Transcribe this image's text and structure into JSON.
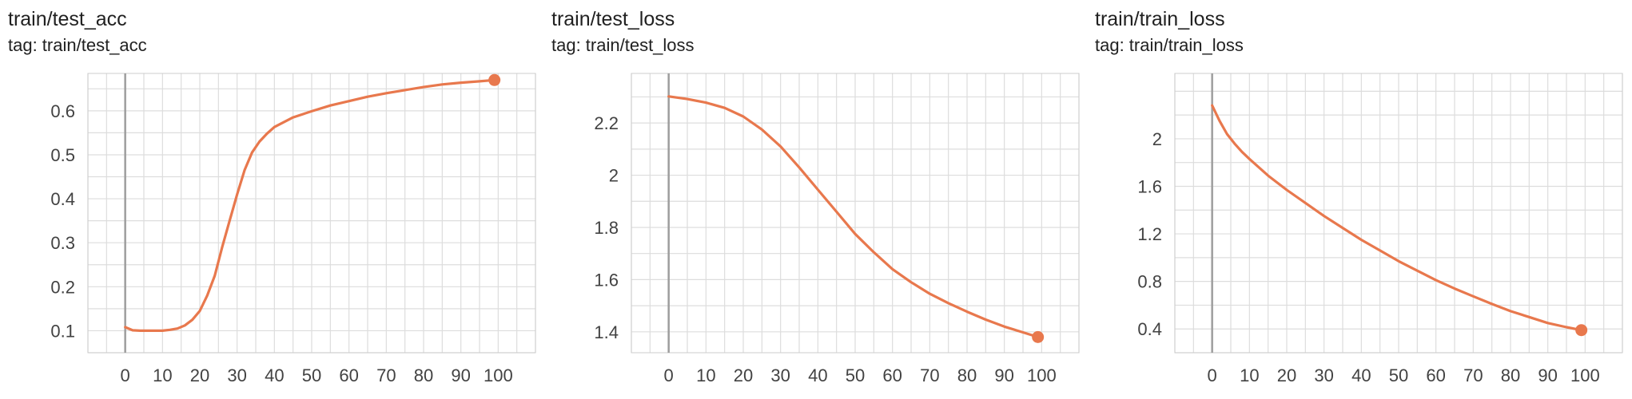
{
  "colors": {
    "series": "#E8784D",
    "grid": "#dddddd",
    "zero_axis": "#9e9e9e",
    "frame": "#cccccc",
    "text": "#212121"
  },
  "panels": [
    {
      "title": "train/test_acc",
      "tag": "tag: train/test_acc"
    },
    {
      "title": "train/test_loss",
      "tag": "tag: train/test_loss"
    },
    {
      "title": "train/train_loss",
      "tag": "tag: train/train_loss"
    }
  ],
  "chart_data": [
    {
      "type": "line",
      "title": "train/test_acc",
      "subtitle": "tag: train/test_acc",
      "xlim": [
        -10,
        110
      ],
      "ylim": [
        0.05,
        0.685
      ],
      "xticks": [
        0,
        10,
        20,
        30,
        40,
        50,
        60,
        70,
        80,
        90,
        100
      ],
      "yticks": [
        0.1,
        0.2,
        0.3,
        0.4,
        0.5,
        0.6
      ],
      "ytick_labels": [
        "0.1",
        "0.2",
        "0.3",
        "0.4",
        "0.5",
        "0.6"
      ],
      "grid": true,
      "series": [
        {
          "x": [
            0,
            2,
            4,
            6,
            8,
            10,
            12,
            14,
            16,
            18,
            20,
            22,
            24,
            26,
            28,
            30,
            32,
            34,
            36,
            38,
            40,
            45,
            50,
            55,
            60,
            65,
            70,
            75,
            80,
            85,
            90,
            95,
            99
          ],
          "y": [
            0.108,
            0.101,
            0.1,
            0.1,
            0.1,
            0.1,
            0.102,
            0.105,
            0.112,
            0.125,
            0.145,
            0.18,
            0.225,
            0.29,
            0.35,
            0.41,
            0.465,
            0.505,
            0.53,
            0.548,
            0.563,
            0.585,
            0.599,
            0.612,
            0.622,
            0.632,
            0.64,
            0.647,
            0.654,
            0.66,
            0.664,
            0.667,
            0.67
          ]
        }
      ]
    },
    {
      "type": "line",
      "title": "train/test_loss",
      "subtitle": "tag: train/test_loss",
      "xlim": [
        -10,
        110
      ],
      "ylim": [
        1.32,
        2.39
      ],
      "xticks": [
        0,
        10,
        20,
        30,
        40,
        50,
        60,
        70,
        80,
        90,
        100
      ],
      "yticks": [
        1.4,
        1.6,
        1.8,
        2.0,
        2.2
      ],
      "ytick_labels": [
        "1.4",
        "1.6",
        "1.8",
        "2",
        "2.2"
      ],
      "grid": true,
      "series": [
        {
          "x": [
            0,
            5,
            10,
            15,
            20,
            25,
            30,
            35,
            40,
            45,
            50,
            55,
            60,
            65,
            70,
            75,
            80,
            85,
            90,
            95,
            99
          ],
          "y": [
            2.302,
            2.292,
            2.278,
            2.258,
            2.225,
            2.175,
            2.11,
            2.03,
            1.945,
            1.86,
            1.775,
            1.705,
            1.64,
            1.59,
            1.546,
            1.51,
            1.477,
            1.447,
            1.42,
            1.398,
            1.38
          ]
        }
      ]
    },
    {
      "type": "line",
      "title": "train/train_loss",
      "subtitle": "tag: train/train_loss",
      "xlim": [
        -10,
        110
      ],
      "ylim": [
        0.2,
        2.55
      ],
      "xticks": [
        0,
        10,
        20,
        30,
        40,
        50,
        60,
        70,
        80,
        90,
        100
      ],
      "yticks": [
        0.4,
        0.8,
        1.2,
        1.6,
        2.0
      ],
      "ytick_labels": [
        "0.4",
        "0.8",
        "1.2",
        "1.6",
        "2"
      ],
      "grid": true,
      "series": [
        {
          "x": [
            0,
            2,
            4,
            6,
            8,
            10,
            15,
            20,
            25,
            30,
            35,
            40,
            45,
            50,
            55,
            60,
            65,
            70,
            75,
            80,
            85,
            90,
            95,
            99
          ],
          "y": [
            2.28,
            2.15,
            2.04,
            1.96,
            1.89,
            1.83,
            1.69,
            1.57,
            1.46,
            1.35,
            1.25,
            1.15,
            1.06,
            0.97,
            0.89,
            0.81,
            0.74,
            0.675,
            0.61,
            0.55,
            0.5,
            0.45,
            0.415,
            0.39
          ]
        }
      ]
    }
  ]
}
